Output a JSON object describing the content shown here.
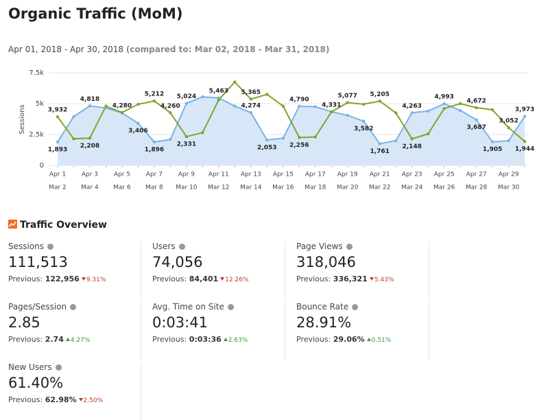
{
  "header": {
    "title": "Organic Traffic (MoM)",
    "date_range": "Apr 01, 2018 - Apr 30, 2018",
    "compared_to": "(compared to: Mar 02, 2018 - Mar 31, 2018)"
  },
  "chart_data": {
    "type": "line",
    "y_label": "Sessions",
    "categories": [
      "Apr 1",
      null,
      "Apr 3",
      null,
      "Apr 5",
      null,
      "Apr 7",
      null,
      "Apr 9",
      null,
      "Apr 11",
      null,
      "Apr 13",
      null,
      "Apr 15",
      null,
      "Apr 17",
      null,
      "Apr 19",
      null,
      "Apr 21",
      null,
      "Apr 23",
      null,
      "Apr 25",
      null,
      "Apr 27",
      null,
      "Apr 29",
      null
    ],
    "compare_categories": [
      "Mar 2",
      null,
      "Mar 4",
      null,
      "Mar 6",
      null,
      "Mar 8",
      null,
      "Mar 10",
      null,
      "Mar 12",
      null,
      "Mar 14",
      null,
      "Mar 16",
      null,
      "Mar 18",
      null,
      "Mar 20",
      null,
      "Mar 22",
      null,
      "Mar 24",
      null,
      "Mar 26",
      null,
      "Mar 28",
      null,
      "Mar 30",
      null
    ],
    "ylim": [
      0,
      7500
    ],
    "yticks": [
      0,
      {
        "value": 2500,
        "label": "2.5k"
      },
      {
        "value": 5000,
        "label": "5k"
      },
      {
        "value": 7500,
        "label": "7.5k"
      }
    ],
    "grid": true,
    "series": [
      {
        "color": "#7ab3e6",
        "fill": "#d7e7f7",
        "values": [
          1893,
          3950,
          4818,
          4650,
          4250,
          3406,
          1896,
          2100,
          5024,
          5550,
          5463,
          4800,
          4274,
          2053,
          2200,
          4790,
          4750,
          4350,
          4050,
          3582,
          1761,
          2000,
          4263,
          4400,
          4993,
          4450,
          3687,
          1905,
          2000,
          3973
        ],
        "value_labels": [
          "1,893",
          null,
          "4,818",
          null,
          null,
          "3,406",
          "1,896",
          null,
          "5,024",
          null,
          "5,463",
          null,
          "4,274",
          "2,053",
          null,
          "4,790",
          null,
          null,
          null,
          "3,582",
          "1,761",
          null,
          "4,263",
          null,
          "4,993",
          null,
          "3,687",
          "1,905",
          null,
          "3,973"
        ]
      },
      {
        "color": "#7fa52a",
        "values": [
          3932,
          2150,
          2208,
          4800,
          4280,
          4950,
          5212,
          4260,
          2331,
          2650,
          5300,
          6750,
          5365,
          5750,
          4800,
          2256,
          2300,
          4331,
          5077,
          4950,
          5205,
          4250,
          2148,
          2550,
          4600,
          5000,
          4672,
          4500,
          3052,
          1944
        ],
        "value_labels": [
          "3,932",
          null,
          "2,208",
          null,
          "4,280",
          null,
          "5,212",
          "4,260",
          "2,331",
          null,
          null,
          null,
          "5,365",
          null,
          null,
          "2,256",
          null,
          "4,331",
          "5,077",
          null,
          "5,205",
          null,
          "2,148",
          null,
          null,
          null,
          "4,672",
          null,
          "3,052",
          "1,944"
        ]
      }
    ]
  },
  "overview": {
    "title": "Traffic Overview",
    "previous_label": "Previous:",
    "metrics": [
      {
        "label": "Sessions",
        "value": "111,513",
        "previous": "122,956",
        "change": "9.31%",
        "trend": "down"
      },
      {
        "label": "Users",
        "value": "74,056",
        "previous": "84,401",
        "change": "12.26%",
        "trend": "down"
      },
      {
        "label": "Page Views",
        "value": "318,046",
        "previous": "336,321",
        "change": "5.43%",
        "trend": "down"
      },
      {
        "label": "Pages/Session",
        "value": "2.85",
        "previous": "2.74",
        "change": "4.27%",
        "trend": "up"
      },
      {
        "label": "Avg. Time on Site",
        "value": "0:03:41",
        "previous": "0:03:36",
        "change": "2.63%",
        "trend": "up"
      },
      {
        "label": "Bounce Rate",
        "value": "28.91%",
        "previous": "29.06%",
        "change": "0.51%",
        "trend": "up"
      },
      {
        "label": "New Users",
        "value": "61.40%",
        "previous": "62.98%",
        "change": "2.50%",
        "trend": "down"
      }
    ]
  }
}
